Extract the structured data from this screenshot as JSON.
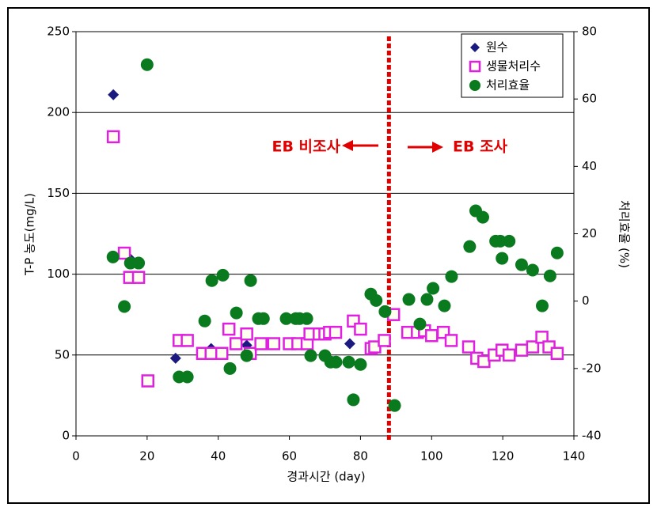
{
  "chart_data": {
    "type": "scatter",
    "x_label": "경과시간 (day)",
    "y_label": "T-P 농도(mg/L)",
    "y2_label": "처리효율 (%)",
    "xlim": [
      0,
      140
    ],
    "xticks": [
      0,
      20,
      40,
      60,
      80,
      100,
      120,
      140
    ],
    "ylim": [
      0,
      250
    ],
    "yticks": [
      0,
      50,
      100,
      150,
      200,
      250
    ],
    "y2lim": [
      -40,
      80
    ],
    "y2ticks": [
      -40,
      -20,
      0,
      20,
      40,
      60,
      80
    ],
    "grid": true,
    "legend": "upper right",
    "reference_line_x": 88,
    "reference_line_color": "#e00000",
    "annotations": [
      "EB 비조사",
      "EB 조사"
    ],
    "series": [
      {
        "name": "원수",
        "color": "#1a1a80",
        "marker": "diamond",
        "x": [
          10.5,
          15,
          28,
          38,
          48,
          77
        ],
        "values": [
          211,
          110,
          48,
          54,
          56,
          57
        ]
      },
      {
        "name": "생물처리수",
        "color": "#e020e0",
        "marker": "square",
        "x": [
          10.5,
          13.6,
          15.1,
          17.6,
          20.2,
          29,
          31.3,
          35.6,
          38,
          41,
          43,
          45,
          48,
          49,
          52,
          55.6,
          60,
          62.4,
          65,
          65.8,
          68.4,
          70,
          71.3,
          73,
          78,
          80,
          83,
          84,
          86.7,
          89.3,
          93.3,
          96,
          98,
          100,
          103.3,
          105.5,
          110.4,
          112.7,
          114.7,
          117.6,
          119.8,
          121.8,
          125.3,
          128.4,
          131,
          133,
          135.3
        ],
        "values": [
          185,
          113,
          98,
          98,
          34,
          59,
          59,
          51,
          51,
          51,
          66,
          57,
          63,
          51,
          57,
          57,
          57,
          57,
          57,
          63,
          63,
          63,
          64,
          64,
          71,
          66,
          54,
          55,
          59,
          75,
          64,
          64,
          65,
          62,
          64,
          59,
          55,
          48,
          46,
          50,
          53,
          50,
          53,
          55,
          61,
          55,
          51
        ]
      },
      {
        "name": "처리효율",
        "color": "#0a7a1e",
        "marker": "circle",
        "axis": "y2",
        "x": [
          10.4,
          13.6,
          15.3,
          17.6,
          20,
          29,
          31.3,
          36.2,
          38.2,
          41.3,
          43.3,
          45.1,
          48,
          49.1,
          51.3,
          52.7,
          59.1,
          61.8,
          62.9,
          64.9,
          66,
          70,
          71.6,
          73.1,
          76.7,
          78,
          80,
          82.9,
          84.4,
          86.9,
          89.6,
          93.6,
          96.7,
          98.7,
          100.4,
          103.6,
          105.6,
          110.7,
          112.4,
          114.4,
          118,
          119.3,
          119.8,
          121.8,
          125.3,
          128.4,
          131.1,
          133.3,
          135.3
        ],
        "values": [
          13.1,
          -1.6,
          11.3,
          11.3,
          70.2,
          -22.5,
          -22.5,
          -5.9,
          6.1,
          7.7,
          -20,
          -3.5,
          -16.2,
          6.1,
          -5.2,
          -5.2,
          -5.2,
          -5.2,
          -5.2,
          -5.2,
          -16.2,
          -16.2,
          -18.1,
          -18.1,
          -18.1,
          -29.3,
          -18.8,
          2.1,
          0.2,
          -3.1,
          -31,
          0.5,
          -6.8,
          0.5,
          3.8,
          -1.4,
          7.3,
          16.2,
          26.8,
          24.9,
          17.8,
          17.8,
          12.7,
          17.8,
          10.8,
          9.2,
          -1.4,
          7.5,
          14.3
        ]
      }
    ]
  }
}
